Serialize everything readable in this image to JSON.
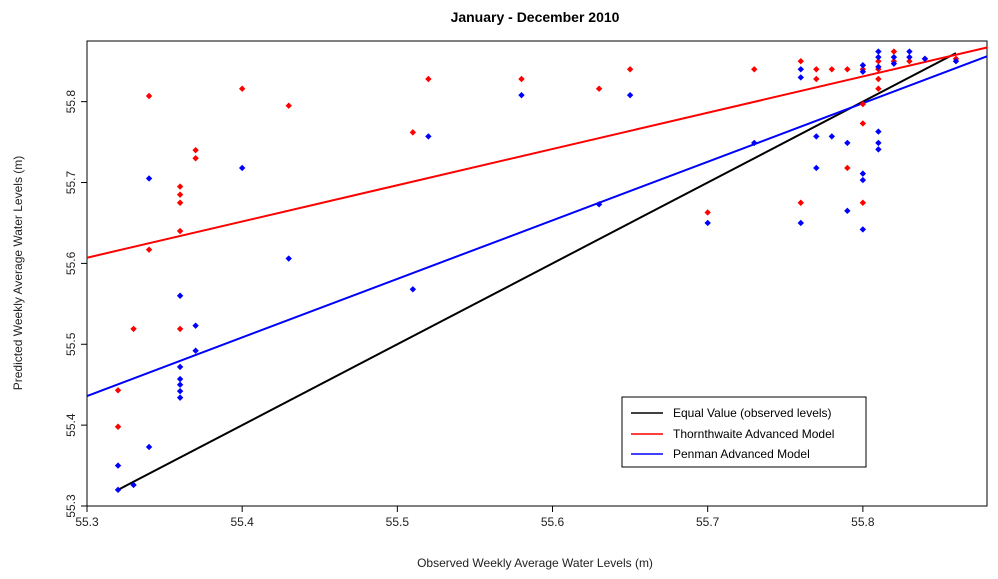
{
  "chart_data": {
    "type": "scatter",
    "title": "January - December 2010",
    "xlabel": "Observed Weekly Average Water Levels (m)",
    "ylabel": "Predicted Weekly Average Water Levels (m)",
    "xlim": [
      55.3,
      55.88
    ],
    "ylim": [
      55.3,
      55.875
    ],
    "x_ticks": [
      55.3,
      55.4,
      55.5,
      55.6,
      55.7,
      55.8
    ],
    "y_ticks": [
      55.3,
      55.4,
      55.5,
      55.6,
      55.7,
      55.8
    ],
    "x_tick_labels": [
      "55.3",
      "55.4",
      "55.5",
      "55.6",
      "55.7",
      "55.8"
    ],
    "y_tick_labels": [
      "55.3",
      "55.4",
      "55.5",
      "55.6",
      "55.7",
      "55.8"
    ],
    "grid": false,
    "legend_position": "bottom-right",
    "legend": [
      {
        "label": "Equal Value (observed levels)",
        "color": "#000000"
      },
      {
        "label": "Thornthwaite Advanced Model",
        "color": "#ff0000"
      },
      {
        "label": "Penman Advanced Model",
        "color": "#0000ff"
      }
    ],
    "series": [
      {
        "name": "Thornthwaite Advanced Model",
        "color": "#ff0000",
        "points": [
          [
            55.32,
            55.443
          ],
          [
            55.32,
            55.398
          ],
          [
            55.33,
            55.519
          ],
          [
            55.34,
            55.807
          ],
          [
            55.34,
            55.617
          ],
          [
            55.36,
            55.695
          ],
          [
            55.36,
            55.685
          ],
          [
            55.36,
            55.675
          ],
          [
            55.36,
            55.64
          ],
          [
            55.36,
            55.519
          ],
          [
            55.37,
            55.74
          ],
          [
            55.37,
            55.73
          ],
          [
            55.4,
            55.816
          ],
          [
            55.43,
            55.795
          ],
          [
            55.51,
            55.762
          ],
          [
            55.52,
            55.828
          ],
          [
            55.58,
            55.828
          ],
          [
            55.63,
            55.816
          ],
          [
            55.65,
            55.84
          ],
          [
            55.7,
            55.663
          ],
          [
            55.73,
            55.84
          ],
          [
            55.76,
            55.85
          ],
          [
            55.76,
            55.675
          ],
          [
            55.77,
            55.84
          ],
          [
            55.77,
            55.828
          ],
          [
            55.78,
            55.84
          ],
          [
            55.79,
            55.84
          ],
          [
            55.79,
            55.718
          ],
          [
            55.8,
            55.84
          ],
          [
            55.8,
            55.797
          ],
          [
            55.8,
            55.773
          ],
          [
            55.8,
            55.675
          ],
          [
            55.81,
            55.85
          ],
          [
            55.81,
            55.84
          ],
          [
            55.81,
            55.828
          ],
          [
            55.81,
            55.816
          ],
          [
            55.82,
            55.862
          ],
          [
            55.82,
            55.85
          ],
          [
            55.83,
            55.85
          ],
          [
            55.84,
            55.853
          ],
          [
            55.86,
            55.853
          ]
        ]
      },
      {
        "name": "Penman Advanced Model",
        "color": "#0000ff",
        "points": [
          [
            55.32,
            55.35
          ],
          [
            55.32,
            55.32
          ],
          [
            55.33,
            55.326
          ],
          [
            55.34,
            55.705
          ],
          [
            55.34,
            55.373
          ],
          [
            55.36,
            55.56
          ],
          [
            55.36,
            55.472
          ],
          [
            55.36,
            55.457
          ],
          [
            55.36,
            55.45
          ],
          [
            55.36,
            55.442
          ],
          [
            55.36,
            55.434
          ],
          [
            55.37,
            55.523
          ],
          [
            55.37,
            55.492
          ],
          [
            55.4,
            55.718
          ],
          [
            55.43,
            55.606
          ],
          [
            55.51,
            55.568
          ],
          [
            55.52,
            55.757
          ],
          [
            55.58,
            55.808
          ],
          [
            55.63,
            55.673
          ],
          [
            55.65,
            55.808
          ],
          [
            55.7,
            55.65
          ],
          [
            55.73,
            55.749
          ],
          [
            55.76,
            55.84
          ],
          [
            55.76,
            55.83
          ],
          [
            55.76,
            55.65
          ],
          [
            55.77,
            55.757
          ],
          [
            55.77,
            55.718
          ],
          [
            55.78,
            55.757
          ],
          [
            55.79,
            55.749
          ],
          [
            55.79,
            55.665
          ],
          [
            55.8,
            55.845
          ],
          [
            55.8,
            55.837
          ],
          [
            55.8,
            55.711
          ],
          [
            55.8,
            55.703
          ],
          [
            55.8,
            55.642
          ],
          [
            55.81,
            55.862
          ],
          [
            55.81,
            55.855
          ],
          [
            55.81,
            55.843
          ],
          [
            55.81,
            55.763
          ],
          [
            55.81,
            55.749
          ],
          [
            55.81,
            55.741
          ],
          [
            55.82,
            55.855
          ],
          [
            55.82,
            55.847
          ],
          [
            55.83,
            55.862
          ],
          [
            55.83,
            55.855
          ],
          [
            55.84,
            55.853
          ],
          [
            55.86,
            55.85
          ]
        ]
      }
    ],
    "lines": [
      {
        "name": "Equal Value (observed levels)",
        "color": "#000000",
        "x": [
          55.32,
          55.86
        ],
        "y": [
          55.32,
          55.86
        ]
      },
      {
        "name": "Thornthwaite Advanced Model",
        "color": "#ff0000",
        "x": [
          55.3,
          55.88
        ],
        "y": [
          55.607,
          55.867
        ]
      },
      {
        "name": "Penman Advanced Model",
        "color": "#0000ff",
        "x": [
          55.3,
          55.88
        ],
        "y": [
          55.436,
          55.856
        ]
      }
    ]
  }
}
